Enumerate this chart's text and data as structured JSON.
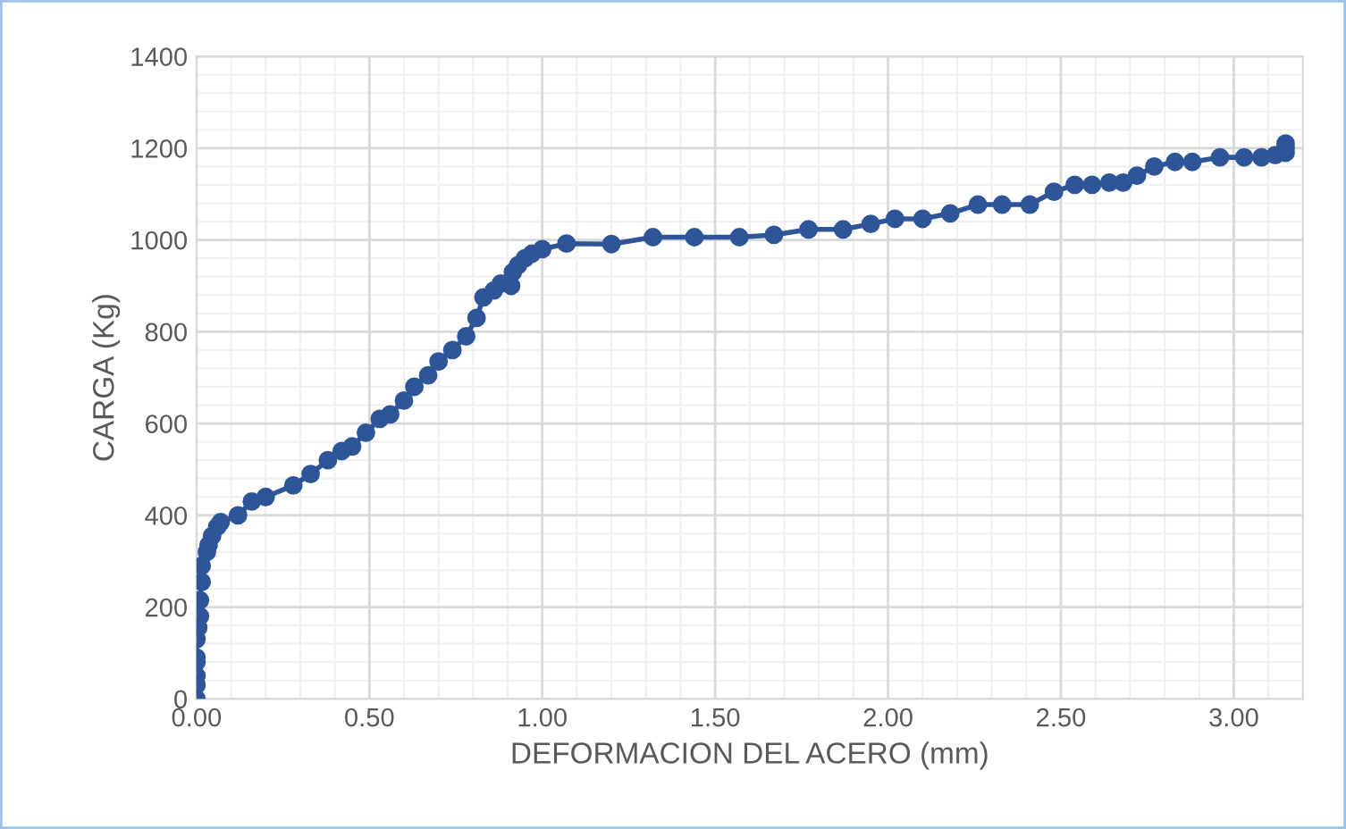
{
  "chart_data": {
    "type": "line",
    "xlabel": "DEFORMACION DEL ACERO (mm)",
    "ylabel": "CARGA (Kg)",
    "marker": "circle",
    "line_style": "solid",
    "grid": true,
    "legend": false,
    "xlim": [
      0,
      3.2
    ],
    "xticks": [
      {
        "value": 0,
        "label": "0.00"
      },
      {
        "value": 0.5,
        "label": "0.50"
      },
      {
        "value": 1,
        "label": "1.00"
      },
      {
        "value": 1.5,
        "label": "1.50"
      },
      {
        "value": 2,
        "label": "2.00"
      },
      {
        "value": 2.5,
        "label": "2.50"
      },
      {
        "value": 3,
        "label": "3.00"
      }
    ],
    "ylim": [
      0,
      1400
    ],
    "yticks": [
      0,
      200,
      400,
      600,
      800,
      1000,
      1200,
      1400
    ],
    "series": [
      {
        "color": "#2e5597",
        "x": [
          0,
          0,
          0,
          0,
          0,
          0,
          0.005,
          0.01,
          0.01,
          0.015,
          0.015,
          0.03,
          0.035,
          0.045,
          0.06,
          0.07,
          0.12,
          0.16,
          0.2,
          0.28,
          0.33,
          0.38,
          0.42,
          0.45,
          0.49,
          0.53,
          0.56,
          0.6,
          0.63,
          0.67,
          0.7,
          0.74,
          0.78,
          0.81,
          0.83,
          0.86,
          0.88,
          0.91,
          0.915,
          0.93,
          0.95,
          0.97,
          1.0,
          1.07,
          1.2,
          1.32,
          1.44,
          1.57,
          1.67,
          1.77,
          1.87,
          1.95,
          2.02,
          2.1,
          2.18,
          2.26,
          2.33,
          2.41,
          2.48,
          2.54,
          2.59,
          2.64,
          2.68,
          2.72,
          2.77,
          2.83,
          2.88,
          2.96,
          3.03,
          3.08,
          3.12,
          3.15,
          3.15,
          3.15
        ],
        "values": [
          0,
          30,
          50,
          80,
          90,
          130,
          155,
          180,
          215,
          255,
          290,
          320,
          335,
          355,
          375,
          385,
          400,
          430,
          440,
          465,
          490,
          520,
          540,
          550,
          580,
          610,
          620,
          650,
          680,
          705,
          735,
          760,
          790,
          830,
          875,
          890,
          905,
          900,
          930,
          945,
          960,
          970,
          980,
          992,
          991,
          1006,
          1006,
          1006,
          1011,
          1023,
          1023,
          1035,
          1046,
          1046,
          1058,
          1077,
          1077,
          1077,
          1105,
          1120,
          1120,
          1125,
          1125,
          1140,
          1160,
          1170,
          1170,
          1180,
          1180,
          1180,
          1185,
          1190,
          1200,
          1210
        ]
      }
    ]
  }
}
